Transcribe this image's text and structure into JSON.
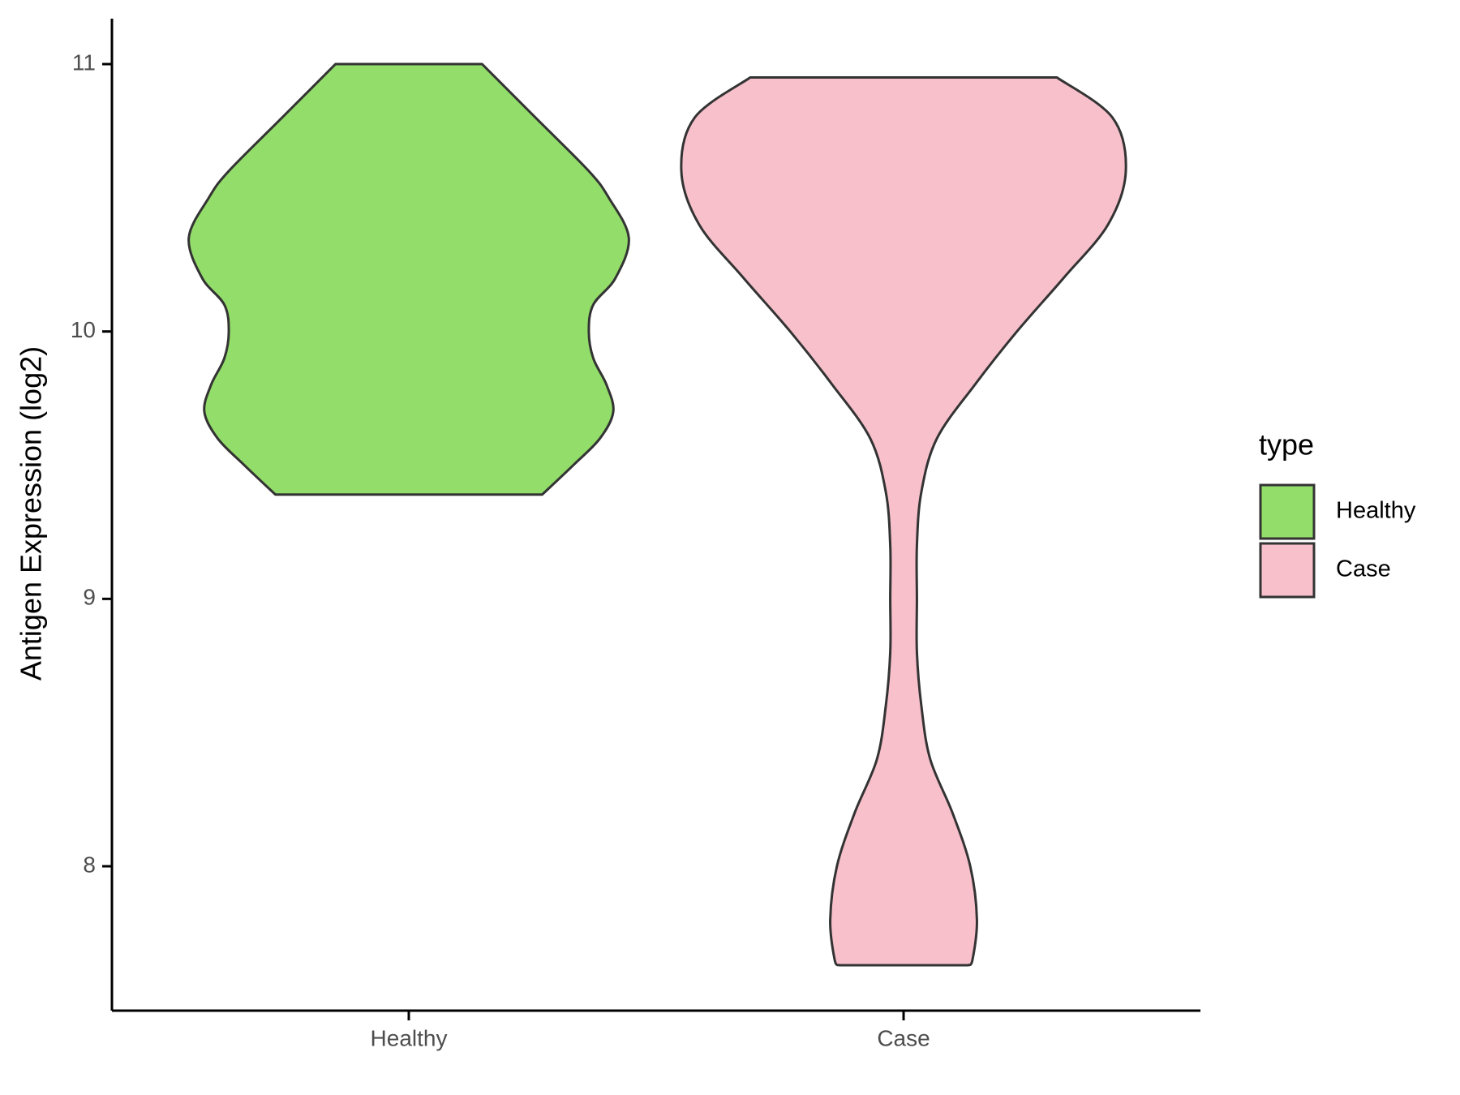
{
  "chart_data": {
    "type": "violin",
    "y_label": "Antigen Expression (log2)",
    "categories": [
      "Healthy",
      "Case"
    ],
    "series": [
      {
        "name": "Healthy",
        "color": "#93dd6a",
        "y": [
          11.0,
          10.8,
          10.6,
          10.5,
          10.35,
          10.2,
          10.1,
          10.0,
          9.9,
          9.8,
          9.7,
          9.6,
          9.5,
          9.39
        ],
        "widths": [
          0.33,
          0.57,
          0.81,
          0.9,
          0.99,
          0.93,
          0.83,
          0.81,
          0.83,
          0.89,
          0.92,
          0.86,
          0.74,
          0.6
        ]
      },
      {
        "name": "Case",
        "color": "#f7c0cb",
        "y": [
          10.95,
          10.8,
          10.6,
          10.4,
          10.2,
          10.0,
          9.8,
          9.6,
          9.4,
          9.2,
          9.0,
          8.8,
          8.6,
          8.4,
          8.2,
          8.0,
          7.8,
          7.65,
          7.63
        ],
        "widths": [
          0.69,
          0.94,
          1.0,
          0.92,
          0.72,
          0.51,
          0.32,
          0.15,
          0.08,
          0.06,
          0.06,
          0.06,
          0.08,
          0.12,
          0.22,
          0.3,
          0.33,
          0.31,
          0.29
        ]
      }
    ],
    "ylim": [
      7.46,
      11.17
    ],
    "yticks": [
      8,
      9,
      10,
      11
    ],
    "legend_title": "type",
    "legend_position": "right"
  }
}
